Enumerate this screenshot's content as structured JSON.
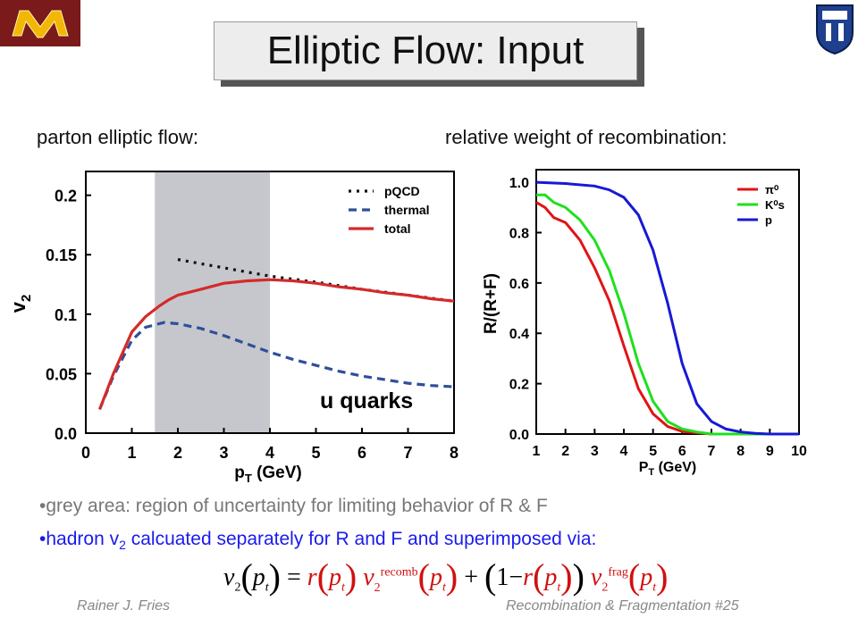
{
  "slide": {
    "title": "Elliptic Flow: Input",
    "left_heading": "parton elliptic flow:",
    "right_heading": "relative weight of recombination:",
    "bullet1": "grey area: region of uncertainty for limiting behavior of R & F",
    "bullet2_pre": "hadron v",
    "bullet2_sub": "2",
    "bullet2_post": " calcuated separately for R and F and superimposed via:",
    "footer_author": "Rainer J. Fries",
    "footer_title": "Recombination & Fragmentation  #25",
    "formula": {
      "v": "v",
      "two": "2",
      "pt": "p",
      "t": "t",
      "eq": "=",
      "r": "r",
      "recomb": "recomb",
      "frag": "frag",
      "plus": "+",
      "one_minus": "1−"
    }
  },
  "chart_data": [
    {
      "type": "line",
      "xlabel_main": "p",
      "xlabel_sub": "T",
      "xlabel_unit": " (GeV)",
      "ylabel_main": "v",
      "ylabel_sub": "2",
      "xlim": [
        0,
        8
      ],
      "ylim": [
        0,
        0.22
      ],
      "x_ticks": [
        "0",
        "1",
        "2",
        "3",
        "4",
        "5",
        "6",
        "7",
        "8"
      ],
      "y_ticks": [
        "0.0",
        "0.05",
        "0.1",
        "0.15",
        "0.2"
      ],
      "shaded_region": [
        1.5,
        4.0
      ],
      "annotation": "u quarks",
      "legend_position": "top-right",
      "series": [
        {
          "name": "pQCD",
          "color": "#111111",
          "dash": "dotted",
          "x": [
            2.0,
            3.0,
            4.0,
            5.0,
            6.0,
            7.0,
            8.0
          ],
          "y": [
            0.146,
            0.139,
            0.132,
            0.127,
            0.121,
            0.116,
            0.111
          ]
        },
        {
          "name": "thermal",
          "color": "#2f4f9a",
          "dash": "dashed",
          "x": [
            0.3,
            0.6,
            1.0,
            1.3,
            1.7,
            2.0,
            2.5,
            3.0,
            3.5,
            4.0,
            4.5,
            5.0,
            5.5,
            6.0,
            6.5,
            7.0,
            7.5,
            8.0
          ],
          "y": [
            0.02,
            0.048,
            0.078,
            0.089,
            0.093,
            0.092,
            0.088,
            0.082,
            0.075,
            0.068,
            0.062,
            0.057,
            0.052,
            0.048,
            0.045,
            0.042,
            0.04,
            0.039
          ]
        },
        {
          "name": "total",
          "color": "#d42a2a",
          "dash": "solid",
          "x": [
            0.3,
            0.6,
            1.0,
            1.3,
            1.6,
            1.8,
            2.0,
            2.5,
            3.0,
            3.5,
            4.0,
            4.5,
            5.0,
            5.5,
            6.0,
            6.5,
            7.0,
            7.5,
            8.0
          ],
          "y": [
            0.02,
            0.05,
            0.085,
            0.098,
            0.107,
            0.112,
            0.116,
            0.121,
            0.126,
            0.128,
            0.129,
            0.128,
            0.126,
            0.123,
            0.121,
            0.118,
            0.116,
            0.113,
            0.111
          ]
        }
      ]
    },
    {
      "type": "line",
      "xlabel_main": "P",
      "xlabel_sub": "T",
      "xlabel_unit": " (GeV)",
      "ylabel": "R/(R+F)",
      "xlim": [
        1,
        10
      ],
      "ylim": [
        0,
        1.05
      ],
      "x_ticks": [
        "1",
        "2",
        "3",
        "4",
        "5",
        "6",
        "7",
        "8",
        "9",
        "10"
      ],
      "y_ticks": [
        "0.0",
        "0.2",
        "0.4",
        "0.6",
        "0.8",
        "1.0"
      ],
      "legend_position": "top-right",
      "series": [
        {
          "name": "π⁰",
          "color": "#e01414",
          "x": [
            1.0,
            1.3,
            1.6,
            2.0,
            2.5,
            3.0,
            3.5,
            4.0,
            4.5,
            5.0,
            5.5,
            6.0,
            6.5,
            7.0,
            8.0,
            10.0
          ],
          "y": [
            0.92,
            0.9,
            0.86,
            0.84,
            0.77,
            0.66,
            0.53,
            0.35,
            0.18,
            0.08,
            0.03,
            0.01,
            0.005,
            0.0,
            0.0,
            0.0
          ]
        },
        {
          "name": "K⁰s",
          "color": "#1ee01e",
          "x": [
            1.0,
            1.3,
            1.6,
            2.0,
            2.5,
            3.0,
            3.5,
            4.0,
            4.5,
            5.0,
            5.5,
            6.0,
            6.5,
            7.0,
            8.0,
            10.0
          ],
          "y": [
            0.95,
            0.95,
            0.92,
            0.9,
            0.85,
            0.77,
            0.65,
            0.48,
            0.28,
            0.13,
            0.05,
            0.02,
            0.008,
            0.0,
            0.0,
            0.0
          ]
        },
        {
          "name": "p",
          "color": "#1818d6",
          "x": [
            1.0,
            2.0,
            3.0,
            3.5,
            4.0,
            4.5,
            5.0,
            5.5,
            6.0,
            6.5,
            7.0,
            7.5,
            8.0,
            8.5,
            9.0,
            10.0
          ],
          "y": [
            1.0,
            0.995,
            0.985,
            0.97,
            0.94,
            0.87,
            0.73,
            0.52,
            0.28,
            0.12,
            0.05,
            0.02,
            0.008,
            0.003,
            0.0,
            0.0
          ]
        }
      ]
    }
  ]
}
